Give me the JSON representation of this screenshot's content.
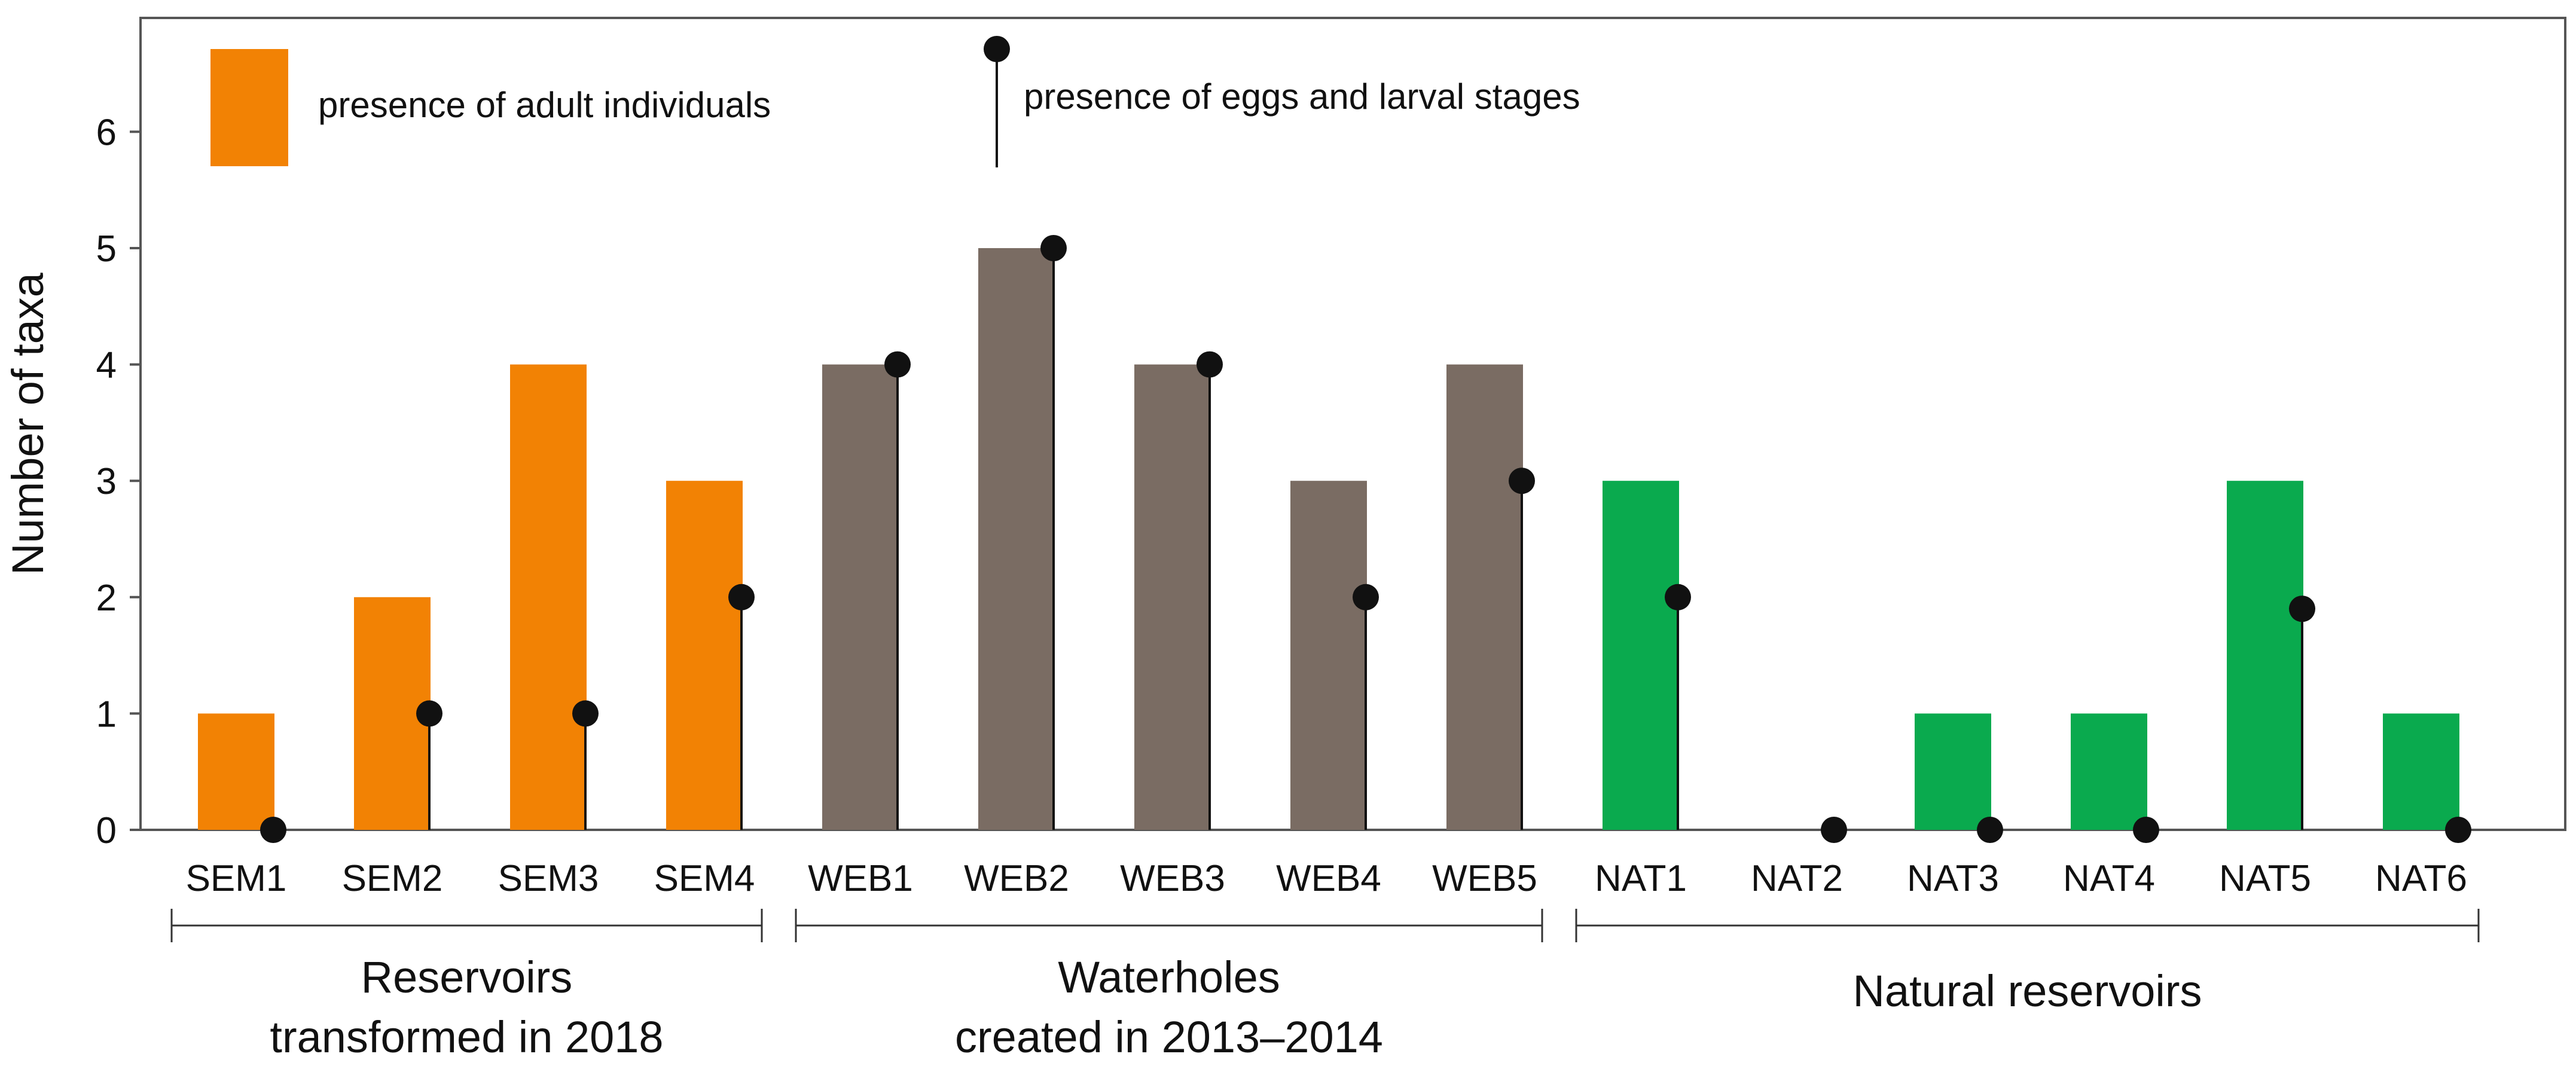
{
  "chart_data": {
    "type": "bar",
    "ylabel": "Number of taxa",
    "xlabel": "",
    "ylim": [
      0,
      7
    ],
    "yticks": [
      0,
      1,
      2,
      3,
      4,
      5,
      6
    ],
    "grid": false,
    "legend_position": "top-left",
    "categories": [
      "SEM1",
      "SEM2",
      "SEM3",
      "SEM4",
      "WEB1",
      "WEB2",
      "WEB3",
      "WEB4",
      "WEB5",
      "NAT1",
      "NAT2",
      "NAT3",
      "NAT4",
      "NAT5",
      "NAT6"
    ],
    "series": [
      {
        "name": "presence of adult individuals",
        "style": "bar",
        "values": [
          1,
          2,
          4,
          3,
          4,
          5,
          4,
          3,
          4,
          3,
          0,
          1,
          1,
          3,
          1
        ]
      },
      {
        "name": "presence of eggs and larval stages",
        "style": "lollipop",
        "values": [
          0,
          1,
          1,
          2,
          4,
          5,
          4,
          2,
          3,
          2,
          0,
          0,
          0,
          1.9,
          0
        ]
      }
    ],
    "groups": [
      {
        "label_line1": "Reservoirs",
        "label_line2": "transformed  in 2018",
        "start": 0,
        "end": 3,
        "color": "#F28204"
      },
      {
        "label_line1": "Waterholes",
        "label_line2": "created in 2013–2014",
        "start": 4,
        "end": 8,
        "color": "#7A6C63"
      },
      {
        "label_line1": "Natural reservoirs",
        "label_line2": "",
        "start": 9,
        "end": 14,
        "color": "#0AAA4E"
      }
    ],
    "marker_color": "#111111"
  }
}
